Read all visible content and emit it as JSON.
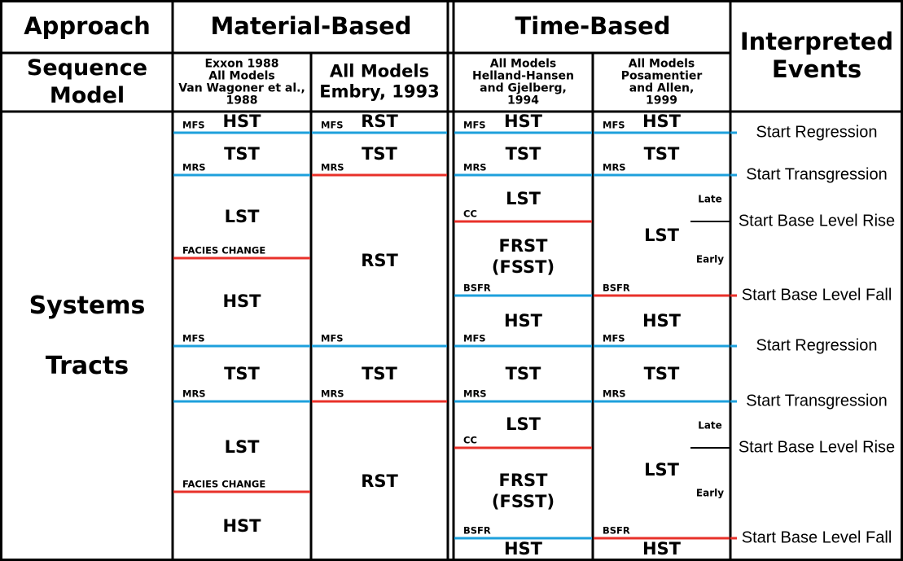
{
  "header": {
    "approach": "Approach",
    "material_based": "Material-Based",
    "time_based": "Time-Based",
    "interpreted_events": [
      "Interpreted",
      "Events"
    ],
    "sequence_model": [
      "Sequence",
      "Model"
    ]
  },
  "systems_tracts": [
    "Systems",
    "Tracts"
  ],
  "models": [
    {
      "name": [
        "Exxon 1988",
        "All Models",
        "Van Wagoner et al.,",
        "1988"
      ],
      "tracts": [
        "HST",
        "TST",
        "LST",
        "HST",
        "TST",
        "LST",
        "HST"
      ],
      "surfaces": [
        "MFS",
        "MRS",
        "FACIES CHANGE",
        "MFS",
        "MRS",
        "FACIES CHANGE"
      ]
    },
    {
      "name": [
        "All Models",
        "Embry, 1993"
      ],
      "tracts": [
        "RST",
        "TST",
        "RST",
        "TST",
        "RST"
      ],
      "surfaces": [
        "MFS",
        "MRS",
        "MFS",
        "MRS"
      ]
    },
    {
      "name": [
        "All Models",
        "Helland-Hansen",
        "and Gjelberg,",
        "1994"
      ],
      "tracts": [
        "HST",
        "TST",
        "LST",
        [
          "FRST",
          "(FSST)"
        ],
        "HST",
        "TST",
        "LST",
        [
          "FRST",
          "(FSST)"
        ],
        "HST"
      ],
      "surfaces": [
        "MFS",
        "MRS",
        "CC",
        "BSFR",
        "MFS",
        "MRS",
        "CC",
        "BSFR"
      ]
    },
    {
      "name": [
        "All Models",
        "Posamentier",
        "and Allen,",
        "1999"
      ],
      "tracts": [
        "HST",
        "TST",
        "LST",
        "HST",
        "TST",
        "LST",
        "HST"
      ],
      "surfaces": [
        "MFS",
        "MRS",
        "BSFR",
        "MFS",
        "MRS",
        "BSFR"
      ],
      "sublabels": [
        "Late",
        "Early",
        "Late",
        "Early"
      ]
    }
  ],
  "events": [
    "Start Regression",
    "Start Transgression",
    "Start Base Level Rise",
    "Start Base Level Fall",
    "Start Regression",
    "Start Transgression",
    "Start Base Level Rise",
    "Start Base Level Fall"
  ]
}
